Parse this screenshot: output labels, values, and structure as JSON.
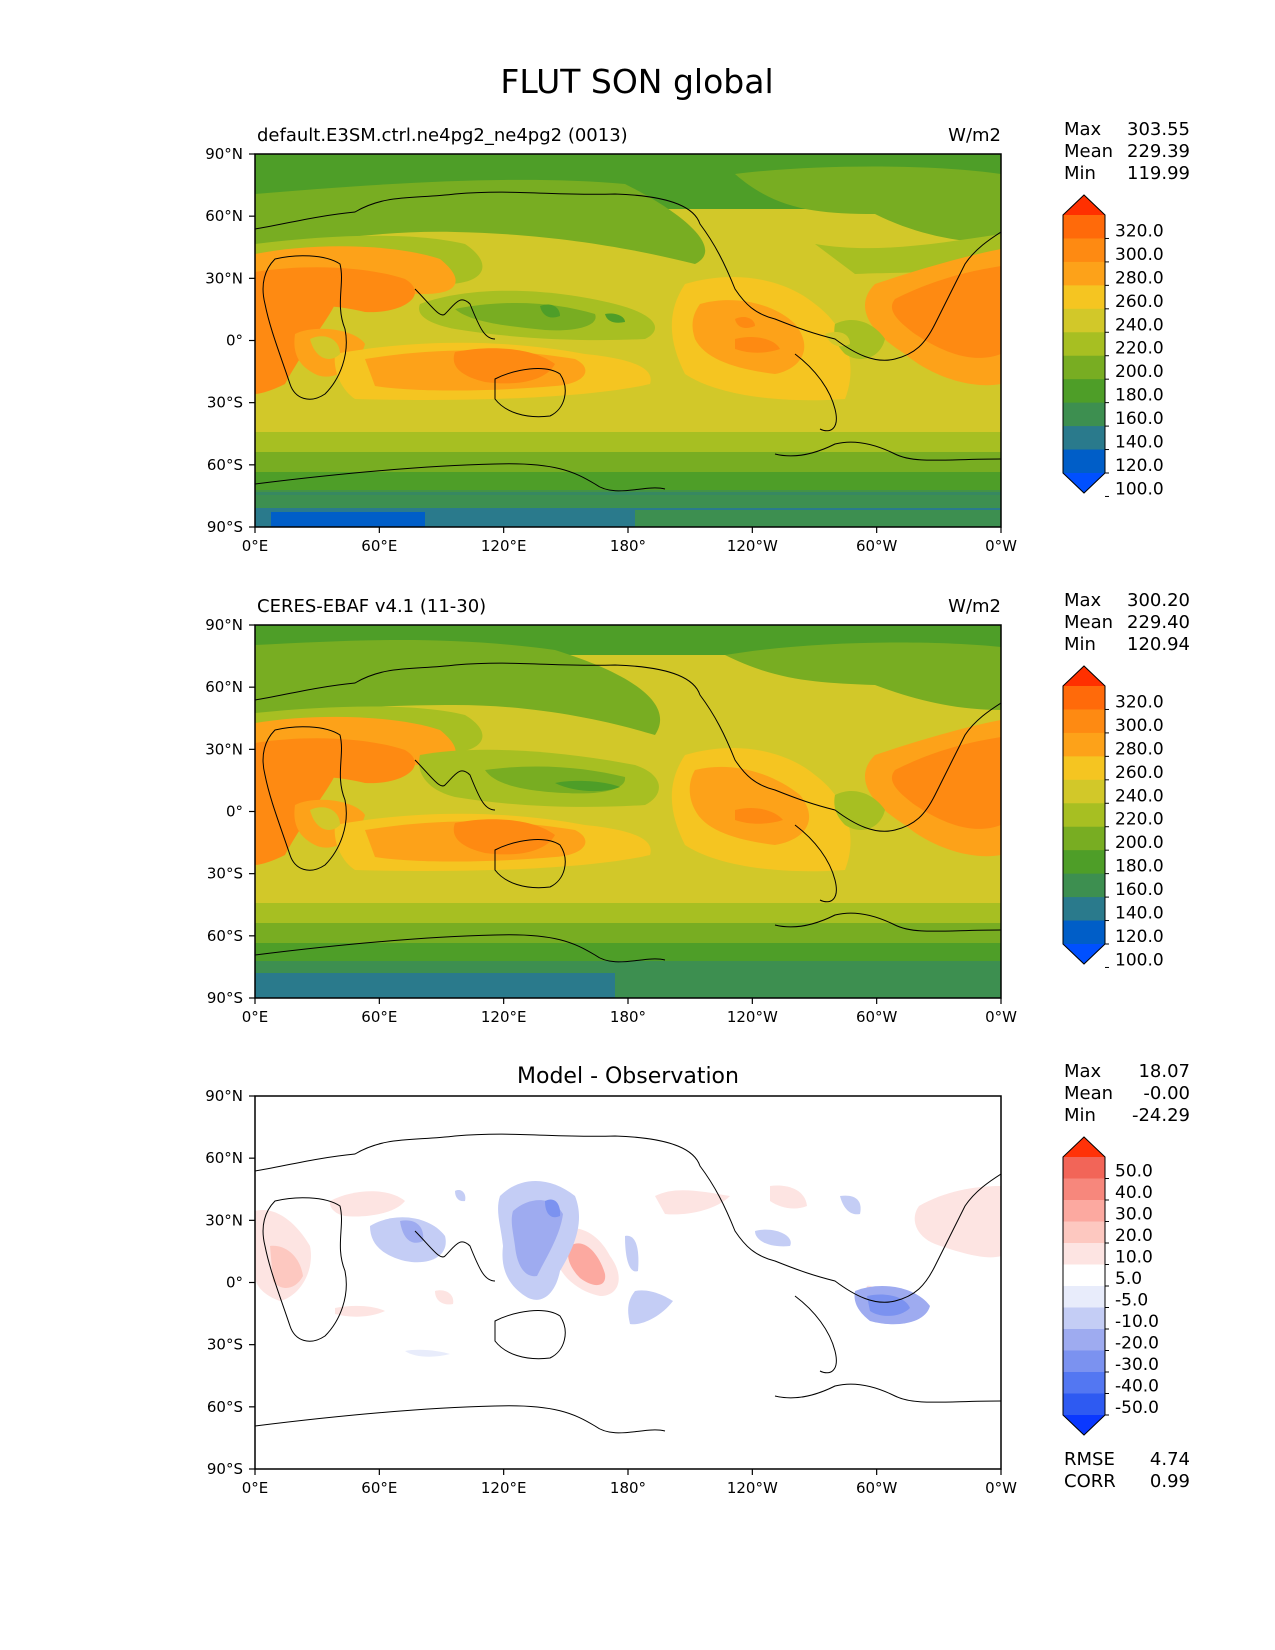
{
  "figure": {
    "title": "FLUT SON global"
  },
  "colors": {
    "levels": [
      "#0050ff",
      "#005ec8",
      "#2a7a8c",
      "#3d8f50",
      "#4e9e28",
      "#78ad22",
      "#a7bf22",
      "#d2c829",
      "#f5c521",
      "#fda219",
      "#fe8a12",
      "#ff6a0a",
      "#ff3000"
    ],
    "diff_levels": [
      "#0a38ff",
      "#2e5af2",
      "#5377f2",
      "#7b92f0",
      "#9eabf0",
      "#c4cdf5",
      "#e8ecfb",
      "#ffffff",
      "#fde4e2",
      "#fdc8c0",
      "#fca9a0",
      "#f7877c",
      "#f26558",
      "#ff3208"
    ]
  },
  "panels": [
    {
      "id": "model",
      "title_left": "default.E3SM.ctrl.ne4pg2_ne4pg2 (0013)",
      "title_center": "",
      "units": "W/m2",
      "stats": [
        {
          "label": "Max",
          "value": "303.55"
        },
        {
          "label": "Mean",
          "value": "229.39"
        },
        {
          "label": "Min",
          "value": "119.99"
        }
      ],
      "colorbar_ticks": [
        "320.0",
        "300.0",
        "280.0",
        "260.0",
        "240.0",
        "220.0",
        "200.0",
        "180.0",
        "160.0",
        "140.0",
        "120.0",
        "100.0"
      ],
      "extra_stats": []
    },
    {
      "id": "obs",
      "title_left": "CERES-EBAF v4.1 (11-30)",
      "title_center": "",
      "units": "W/m2",
      "stats": [
        {
          "label": "Max",
          "value": "300.20"
        },
        {
          "label": "Mean",
          "value": "229.40"
        },
        {
          "label": "Min",
          "value": "120.94"
        }
      ],
      "colorbar_ticks": [
        "320.0",
        "300.0",
        "280.0",
        "260.0",
        "240.0",
        "220.0",
        "200.0",
        "180.0",
        "160.0",
        "140.0",
        "120.0",
        "100.0"
      ],
      "extra_stats": []
    },
    {
      "id": "diff",
      "title_left": "",
      "title_center": "Model - Observation",
      "units": "",
      "stats": [
        {
          "label": "Max",
          "value": "18.07"
        },
        {
          "label": "Mean",
          "value": "-0.00"
        },
        {
          "label": "Min",
          "value": "-24.29"
        }
      ],
      "colorbar_ticks": [
        "50.0",
        "40.0",
        "30.0",
        "20.0",
        "10.0",
        "5.0",
        "-5.0",
        "-10.0",
        "-20.0",
        "-30.0",
        "-40.0",
        "-50.0"
      ],
      "extra_stats": [
        {
          "label": "RMSE",
          "value": "4.74"
        },
        {
          "label": "CORR",
          "value": "0.99"
        }
      ]
    }
  ],
  "axes": {
    "lat_labels": [
      "90°N",
      "60°N",
      "30°N",
      "0°",
      "30°S",
      "60°S",
      "90°S"
    ],
    "lon_labels": [
      "0°E",
      "60°E",
      "120°E",
      "180°",
      "120°W",
      "60°W",
      "0°W"
    ]
  }
}
